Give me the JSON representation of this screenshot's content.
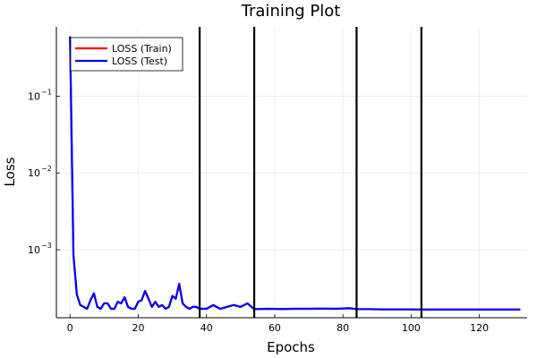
{
  "chart_data": {
    "type": "line",
    "title": "Training Plot",
    "xlabel": "Epochs",
    "ylabel": "Loss",
    "xlim": [
      -4,
      134
    ],
    "ylim": [
      0.00013,
      0.8
    ],
    "yscale": "log",
    "xticks": [
      0,
      20,
      40,
      60,
      80,
      100,
      120
    ],
    "xtick_labels": [
      "0",
      "20",
      "40",
      "60",
      "80",
      "100",
      "120"
    ],
    "yticks": [
      0.001,
      0.01,
      0.1
    ],
    "ytick_base": "10",
    "ytick_exponents": [
      "−3",
      "−2",
      "−1"
    ],
    "grid": true,
    "legend_position": "top-left",
    "vlines": [
      38,
      54,
      84,
      103
    ],
    "vline_color": "#000000",
    "series": [
      {
        "name": "LOSS (Train)",
        "color": "#ff0000",
        "x": [
          0,
          1,
          2,
          3,
          4,
          5,
          6,
          7,
          8,
          9,
          10,
          11,
          12,
          13,
          14,
          15,
          16,
          17,
          18,
          19,
          20,
          21,
          22,
          23,
          24,
          25,
          26,
          27,
          28,
          29,
          30,
          31,
          32,
          33,
          34,
          35,
          36,
          37,
          38,
          40,
          42,
          44,
          46,
          48,
          50,
          52,
          54,
          58,
          62,
          66,
          70,
          74,
          78,
          82,
          84,
          88,
          92,
          96,
          100,
          103,
          110,
          120,
          132
        ],
        "y": [
          0.6,
          0.00085,
          0.00026,
          0.00019,
          0.00018,
          0.00017,
          0.00022,
          0.00027,
          0.00018,
          0.00017,
          0.0002,
          0.0002,
          0.00017,
          0.00017,
          0.00021,
          0.0002,
          0.00024,
          0.00018,
          0.00017,
          0.00017,
          0.00021,
          0.00022,
          0.00029,
          0.00023,
          0.00018,
          0.00021,
          0.00018,
          0.00019,
          0.00017,
          0.00018,
          0.00025,
          0.00023,
          0.00036,
          0.0002,
          0.00018,
          0.00017,
          0.00018,
          0.00018,
          0.00017,
          0.00017,
          0.00019,
          0.00017,
          0.00018,
          0.00019,
          0.00018,
          0.0002,
          0.000168,
          0.00017,
          0.000169,
          0.00017,
          0.00017,
          0.000171,
          0.00017,
          0.000173,
          0.000168,
          0.000168,
          0.000167,
          0.000167,
          0.000167,
          0.000166,
          0.000166,
          0.000166,
          0.000166
        ]
      },
      {
        "name": "LOSS (Test)",
        "color": "#0000ff",
        "x": [
          0,
          1,
          2,
          3,
          4,
          5,
          6,
          7,
          8,
          9,
          10,
          11,
          12,
          13,
          14,
          15,
          16,
          17,
          18,
          19,
          20,
          21,
          22,
          23,
          24,
          25,
          26,
          27,
          28,
          29,
          30,
          31,
          32,
          33,
          34,
          35,
          36,
          37,
          38,
          40,
          42,
          44,
          46,
          48,
          50,
          52,
          54,
          58,
          62,
          66,
          70,
          74,
          78,
          82,
          84,
          88,
          92,
          96,
          100,
          103,
          110,
          120,
          132
        ],
        "y": [
          0.6,
          0.00085,
          0.00026,
          0.00019,
          0.00018,
          0.00017,
          0.00022,
          0.00027,
          0.00018,
          0.00017,
          0.0002,
          0.0002,
          0.00017,
          0.00017,
          0.00021,
          0.0002,
          0.00024,
          0.00018,
          0.00017,
          0.00017,
          0.00021,
          0.00022,
          0.00029,
          0.00023,
          0.00018,
          0.00021,
          0.00018,
          0.00019,
          0.00017,
          0.00018,
          0.00025,
          0.00023,
          0.00036,
          0.0002,
          0.00018,
          0.00017,
          0.00018,
          0.00018,
          0.00017,
          0.00017,
          0.00019,
          0.00017,
          0.00018,
          0.00019,
          0.00018,
          0.0002,
          0.000168,
          0.00017,
          0.000169,
          0.00017,
          0.00017,
          0.000171,
          0.00017,
          0.000173,
          0.000168,
          0.000168,
          0.000167,
          0.000167,
          0.000167,
          0.000166,
          0.000166,
          0.000166,
          0.000166
        ]
      }
    ]
  }
}
